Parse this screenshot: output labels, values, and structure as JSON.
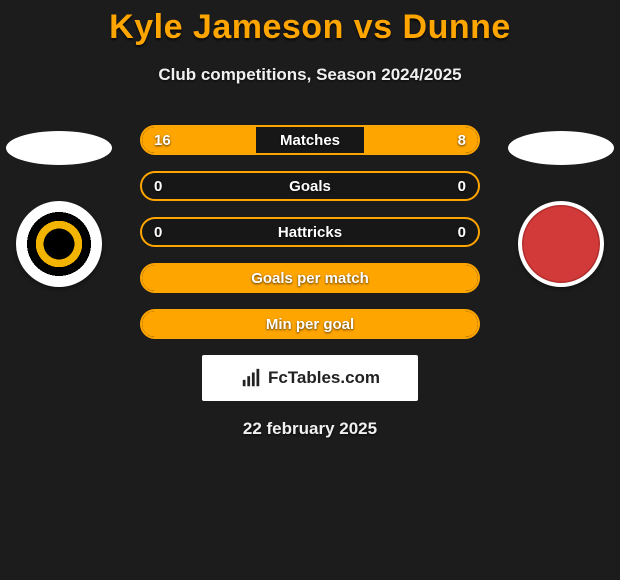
{
  "title": "Kyle Jameson vs Dunne",
  "subtitle": "Club competitions, Season 2024/2025",
  "date": "22 february 2025",
  "brand": "FcTables.com",
  "colors": {
    "accent": "#ffa500",
    "background": "#1c1c1c",
    "text": "#f0f0f0"
  },
  "rows": [
    {
      "label": "Matches",
      "left": "16",
      "right": "8",
      "left_fill_pct": 34,
      "right_fill_pct": 34
    },
    {
      "label": "Goals",
      "left": "0",
      "right": "0",
      "left_fill_pct": 0,
      "right_fill_pct": 0
    },
    {
      "label": "Hattricks",
      "left": "0",
      "right": "0",
      "left_fill_pct": 0,
      "right_fill_pct": 0
    },
    {
      "label": "Goals per match",
      "left": "",
      "right": "",
      "full_fill": true
    },
    {
      "label": "Min per goal",
      "left": "",
      "right": "",
      "full_fill": true
    }
  ],
  "badges": {
    "left": {
      "name": "newport-county-badge"
    },
    "right": {
      "name": "morecambe-badge"
    }
  }
}
